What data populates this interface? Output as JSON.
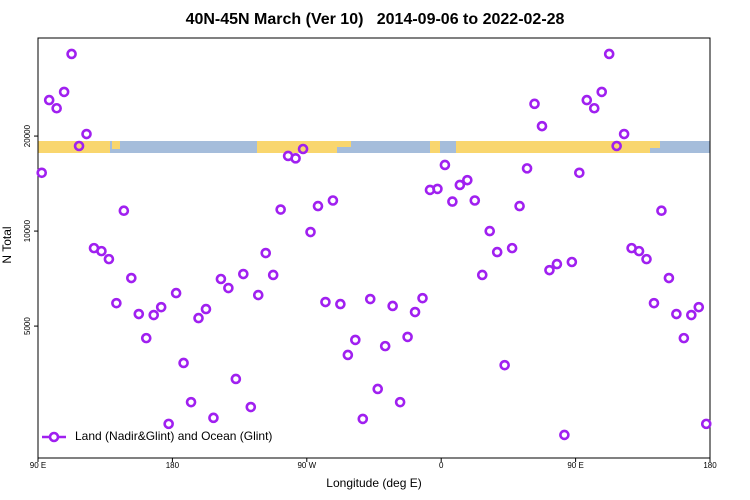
{
  "chart_data": {
    "type": "scatter",
    "title": "40N-45N March (Ver 10)   2014-09-06 to 2022-02-28",
    "x_label": "Longitude (deg E)",
    "y_label": "N Total",
    "x": [
      92.5,
      97.5,
      102.5,
      107.5,
      112.5,
      117.5,
      122.5,
      127.5,
      132.5,
      137.5,
      142.5,
      147.5,
      152.5,
      157.5,
      162.5,
      167.5,
      172.5,
      177.5,
      182.5,
      187.5,
      192.5,
      197.5,
      202.5,
      207.5,
      212.5,
      217.5,
      222.5,
      227.5,
      232.5,
      237.5,
      242.5,
      247.5,
      252.5,
      257.5,
      262.5,
      267.5,
      272.5,
      277.5,
      282.5,
      287.5,
      292.5,
      297.5,
      302.5,
      307.5,
      312.5,
      317.5,
      322.5,
      327.5,
      332.5,
      337.5,
      342.5,
      347.5,
      352.5,
      357.5,
      362.5,
      367.5,
      372.5,
      377.5,
      382.5,
      387.5,
      392.5,
      397.5,
      402.5,
      407.5,
      412.5,
      417.5,
      422.5,
      427.5,
      432.5,
      437.5,
      442.5,
      447.5,
      452.5,
      457.5,
      462.5,
      467.5,
      472.5,
      477.5,
      482.5,
      487.5,
      492.5,
      497.5,
      502.5,
      507.5,
      512.5,
      517.5,
      522.5,
      527.5,
      532.5,
      537.5
    ],
    "series": [
      {
        "name": "Land (Nadir&Glint) and Ocean (Glint)",
        "color": "#a020f0",
        "values": [
          15300,
          26000,
          24500,
          27600,
          36400,
          18600,
          20300,
          8830,
          8640,
          8150,
          5910,
          11600,
          7100,
          5460,
          4580,
          5420,
          5740,
          2450,
          6360,
          3820,
          2870,
          5300,
          5660,
          2560,
          7050,
          6600,
          3400,
          7310,
          2770,
          6270,
          8520,
          7260,
          11700,
          17300,
          17000,
          18200,
          9930,
          12000,
          5960,
          12500,
          5870,
          4050,
          4520,
          2540,
          6090,
          3160,
          4320,
          5790,
          2870,
          4620,
          5540,
          6130,
          13500,
          13600,
          16200,
          12400,
          14000,
          14500,
          12500,
          7260,
          10000,
          8580,
          3760,
          8830,
          12000,
          15800,
          25300,
          21500,
          7520,
          7860,
          2260,
          7980,
          15300,
          26000,
          24500,
          27600,
          36400,
          18600,
          20300,
          8830,
          8640,
          8150,
          5910,
          11600,
          7100,
          5460,
          4580,
          5420,
          5740,
          2450
        ]
      }
    ],
    "xlim": [
      90,
      540
    ],
    "xticks": [
      {
        "value": 90,
        "label": "90 E"
      },
      180,
      {
        "value": 270,
        "label": "90 W"
      },
      {
        "value": 360,
        "label": "0"
      },
      {
        "value": 450,
        "label": "90 E"
      },
      {
        "value": 540,
        "label": "180"
      }
    ],
    "ylim": [
      1910,
      40900
    ],
    "yticks": [
      5000,
      10000,
      20000
    ],
    "log_y": true,
    "grid": false,
    "legend": "bottom-left"
  }
}
